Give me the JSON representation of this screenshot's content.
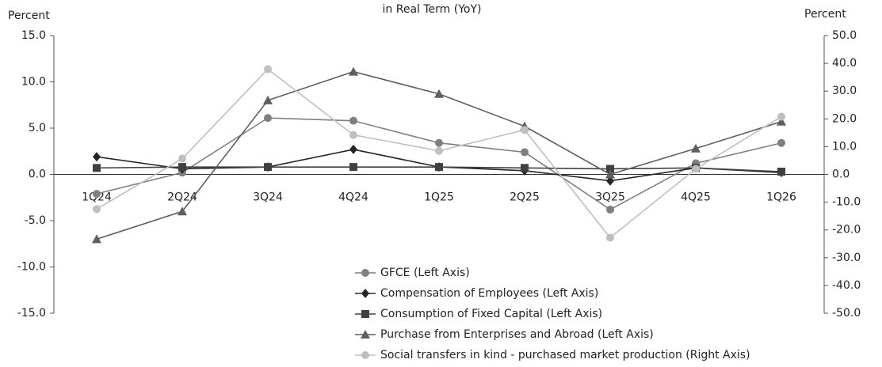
{
  "chart_data": {
    "type": "line",
    "title": "in Real Term (YoY)",
    "y_label": "Percent",
    "y2_label": "Percent",
    "categories": [
      "1Q24",
      "2Q24",
      "3Q24",
      "4Q24",
      "1Q25",
      "2Q25",
      "3Q25",
      "4Q25",
      "1Q26"
    ],
    "ylim": [
      -15,
      15
    ],
    "yticks": [
      {
        "value": -15,
        "label": "-15.0"
      },
      {
        "value": -10,
        "label": "-10.0"
      },
      {
        "value": -5,
        "label": "-5.0"
      },
      {
        "value": 0,
        "label": "0.0"
      },
      {
        "value": 5,
        "label": "5.0"
      },
      {
        "value": 10,
        "label": "10.0"
      },
      {
        "value": 15,
        "label": "15.0"
      }
    ],
    "y2lim": [
      -50,
      50
    ],
    "y2ticks": [
      {
        "value": -50,
        "label": "-50.0"
      },
      {
        "value": -40,
        "label": "-40.0"
      },
      {
        "value": -30,
        "label": "-30.0"
      },
      {
        "value": -20,
        "label": "-20.0"
      },
      {
        "value": -10,
        "label": "-10.0"
      },
      {
        "value": 0,
        "label": "0.0"
      },
      {
        "value": 10,
        "label": "10.0"
      },
      {
        "value": 20,
        "label": "20.0"
      },
      {
        "value": 30,
        "label": "30.0"
      },
      {
        "value": 40,
        "label": "40.0"
      },
      {
        "value": 50,
        "label": "50.0"
      }
    ],
    "grid": false,
    "legend": "bottom-center",
    "series": [
      {
        "name": "GFCE (Left Axis)",
        "color": "#7f7f7f",
        "marker": "circle",
        "values": [
          -2.1,
          0.2,
          6.1,
          5.8,
          3.4,
          2.4,
          -3.8,
          1.2,
          3.4
        ]
      },
      {
        "name": "Compensation of Employees (Left Axis)",
        "color": "#262626",
        "marker": "diamond",
        "values": [
          1.9,
          0.6,
          0.8,
          2.7,
          0.8,
          0.4,
          -0.7,
          0.7,
          0.2
        ]
      },
      {
        "name": "Consumption of Fixed Capital (Left Axis)",
        "color": "#404040",
        "marker": "square",
        "values": [
          0.7,
          0.8,
          0.8,
          0.8,
          0.8,
          0.7,
          0.6,
          0.7,
          0.3
        ]
      },
      {
        "name": "Purchase from Enterprises and Abroad (Left Axis)",
        "color": "#5f5f5f",
        "marker": "triangle",
        "values": [
          -7.0,
          -4.0,
          8.0,
          11.1,
          8.7,
          5.2,
          0.0,
          2.8,
          5.7
        ]
      },
      {
        "name": "Social transfers in kind - purchased market production (Right Axis)",
        "color": "#bfbfbf",
        "marker": "circle",
        "axis": "y2",
        "values": [
          -12.5,
          5.7,
          37.9,
          14.2,
          8.5,
          16.0,
          -22.8,
          2.0,
          20.8
        ]
      }
    ]
  }
}
